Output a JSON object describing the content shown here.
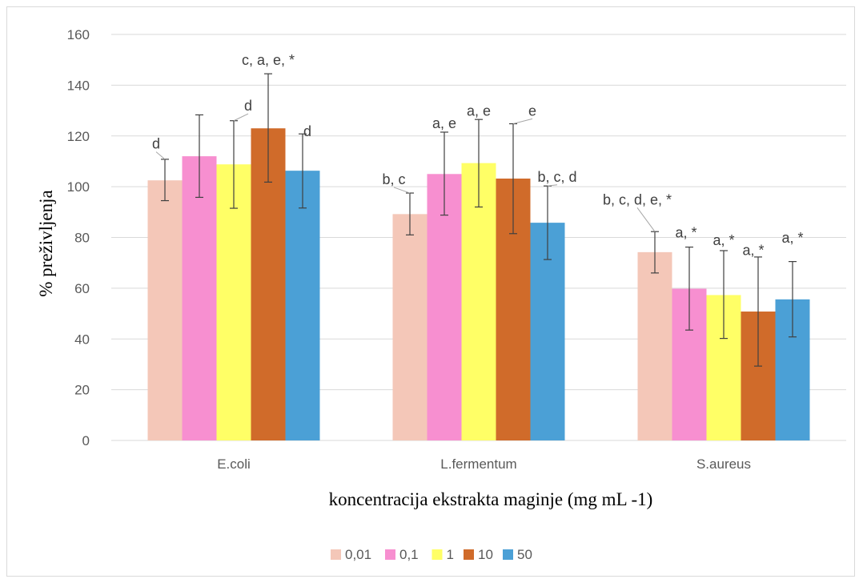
{
  "chart_data": {
    "type": "bar",
    "title": "",
    "xlabel": "koncentracija ekstrakta maginje (mg mL -1)",
    "ylabel": "% preživljenja",
    "ylim": [
      0,
      160
    ],
    "yticks": [
      0,
      20,
      40,
      60,
      80,
      100,
      120,
      140,
      160
    ],
    "grid": true,
    "legend_position": "bottom",
    "categories": [
      "E.coli",
      "L.fermentum",
      "S.aureus"
    ],
    "series": [
      {
        "name": "0,01",
        "color": "#f4c7b8",
        "values": [
          102.5,
          89.2,
          74.2
        ],
        "err_low": [
          94.5,
          81.0,
          66.0
        ],
        "err_high": [
          110.8,
          97.5,
          82.3
        ]
      },
      {
        "name": "0,1",
        "color": "#f78fd0",
        "values": [
          112.0,
          105.0,
          59.8
        ],
        "err_low": [
          95.8,
          88.8,
          43.5
        ],
        "err_high": [
          128.3,
          121.5,
          76.2
        ]
      },
      {
        "name": "1",
        "color": "#ffff66",
        "values": [
          108.8,
          109.3,
          57.3
        ],
        "err_low": [
          91.5,
          92.0,
          40.2
        ],
        "err_high": [
          126.0,
          126.5,
          74.8
        ]
      },
      {
        "name": "10",
        "color": "#d06b2a",
        "values": [
          123.0,
          103.2,
          50.8
        ],
        "err_low": [
          101.8,
          81.5,
          29.3
        ],
        "err_high": [
          144.5,
          124.8,
          72.3
        ]
      },
      {
        "name": "50",
        "color": "#4ba0d6",
        "values": [
          106.3,
          85.8,
          55.6
        ],
        "err_low": [
          91.6,
          71.3,
          40.8
        ],
        "err_high": [
          120.8,
          100.3,
          70.5
        ]
      }
    ],
    "annotations": [
      {
        "category": 0,
        "series": 0,
        "text": "d",
        "label_y": 115
      },
      {
        "category": 0,
        "series": 2,
        "text": "d",
        "label_y": 130
      },
      {
        "category": 0,
        "series": 3,
        "text": "c, a, e, *",
        "label_y": 148
      },
      {
        "category": 0,
        "series": 4,
        "text": "d",
        "label_y": 120
      },
      {
        "category": 1,
        "series": 0,
        "text": "b, c",
        "label_y": 101
      },
      {
        "category": 1,
        "series": 1,
        "text": "a, e",
        "label_y": 123
      },
      {
        "category": 1,
        "series": 2,
        "text": "a, e",
        "label_y": 128
      },
      {
        "category": 1,
        "series": 3,
        "text": "e",
        "label_y": 128
      },
      {
        "category": 1,
        "series": 4,
        "text": "b, c, d",
        "label_y": 102
      },
      {
        "category": 2,
        "series": 0,
        "text": "b, c, d, e, *",
        "label_y": 93
      },
      {
        "category": 2,
        "series": 1,
        "text": "a, *",
        "label_y": 80
      },
      {
        "category": 2,
        "series": 2,
        "text": "a, *",
        "label_y": 77
      },
      {
        "category": 2,
        "series": 3,
        "text": "a, *",
        "label_y": 73
      },
      {
        "category": 2,
        "series": 4,
        "text": "a, *",
        "label_y": 78
      }
    ]
  }
}
